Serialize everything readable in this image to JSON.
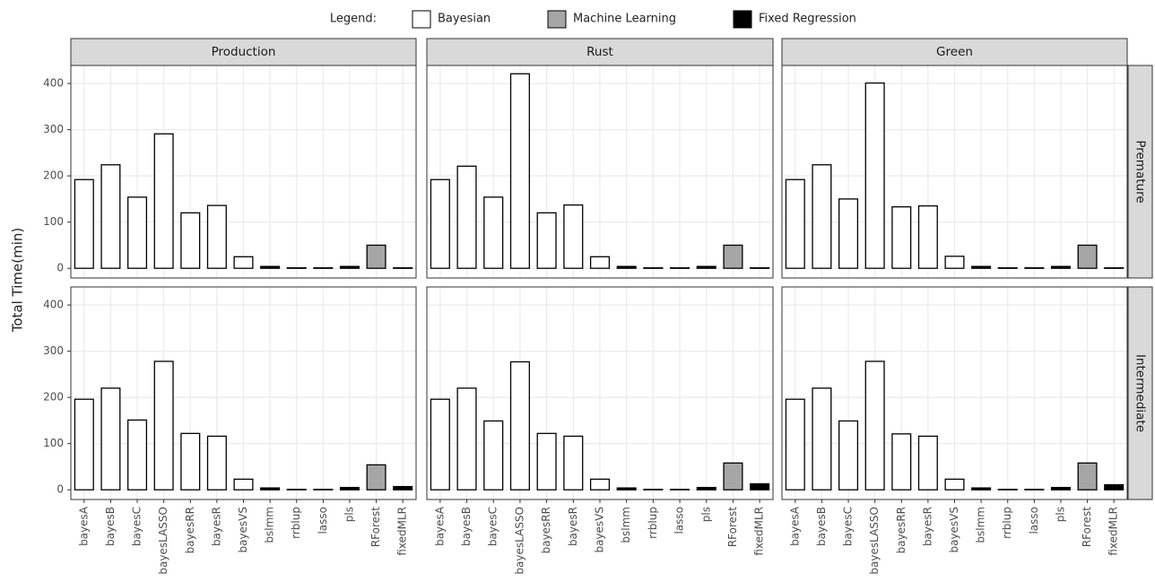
{
  "chart_data": {
    "type": "bar",
    "y_label": "Total Time(min)",
    "legend_title": "Legend:",
    "groups": [
      {
        "name": "Bayesian",
        "color": "#ffffff"
      },
      {
        "name": "Machine Learning",
        "color": "#a6a6a6"
      },
      {
        "name": "Fixed Regression",
        "color": "#000000"
      }
    ],
    "categories": [
      "bayesA",
      "bayesB",
      "bayesC",
      "bayesLASSO",
      "bayesRR",
      "bayesR",
      "bayesVS",
      "bslmm",
      "rrblup",
      "lasso",
      "pls",
      "RForest",
      "fixedMLR"
    ],
    "category_groups": [
      "Bayesian",
      "Bayesian",
      "Bayesian",
      "Bayesian",
      "Bayesian",
      "Bayesian",
      "Bayesian",
      "Fixed Regression",
      "Fixed Regression",
      "Fixed Regression",
      "Fixed Regression",
      "Machine Learning",
      "Fixed Regression"
    ],
    "columns": [
      "Production",
      "Rust",
      "Green"
    ],
    "rows": [
      "Premature",
      "Intermediate"
    ],
    "panels": [
      [
        [
          192,
          224,
          154,
          291,
          120,
          136,
          25,
          4,
          1,
          1,
          4,
          50,
          1
        ],
        [
          192,
          221,
          154,
          421,
          120,
          137,
          25,
          4,
          1,
          1,
          4,
          50,
          1
        ],
        [
          192,
          224,
          150,
          401,
          133,
          135,
          26,
          4,
          1,
          1,
          4,
          50,
          1
        ]
      ],
      [
        [
          196,
          220,
          151,
          278,
          122,
          116,
          23,
          4,
          1,
          1,
          5,
          54,
          7
        ],
        [
          196,
          220,
          149,
          277,
          122,
          116,
          23,
          4,
          1,
          1,
          5,
          58,
          13
        ],
        [
          196,
          220,
          149,
          278,
          121,
          116,
          23,
          4,
          1,
          1,
          5,
          58,
          11
        ]
      ]
    ],
    "ylim": [
      -21,
      439
    ],
    "yticks": [
      0,
      100,
      200,
      300,
      400
    ],
    "grid": true
  }
}
